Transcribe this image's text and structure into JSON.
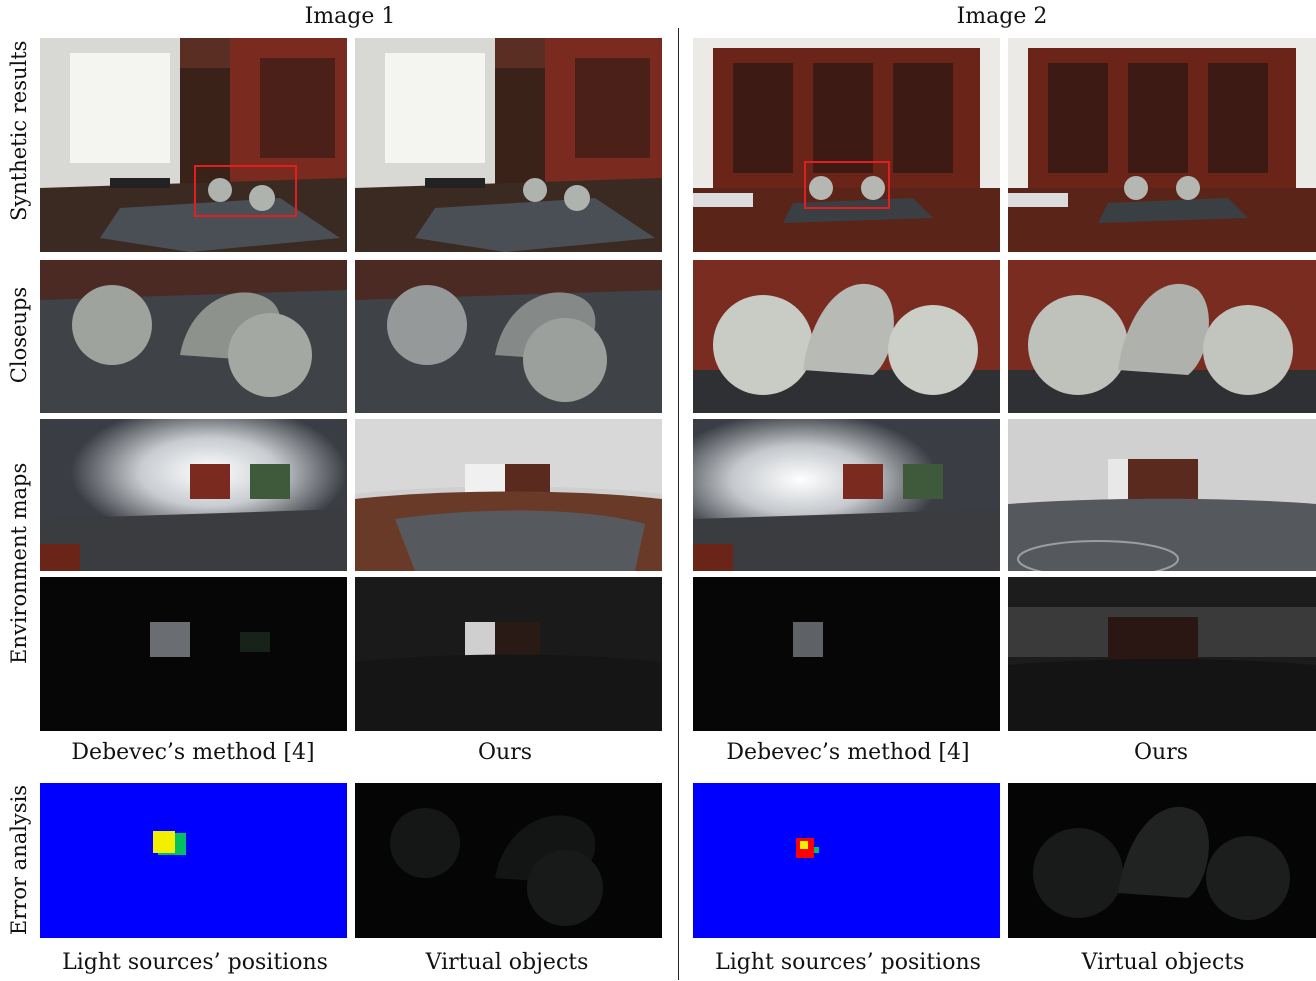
{
  "headers": {
    "left": "Image 1",
    "right": "Image 2"
  },
  "row_labels": {
    "synthetic": "Synthetic results",
    "closeups": "Closeups",
    "environment": "Environment maps",
    "error": "Error analysis"
  },
  "captions": {
    "debevec_left": "Debevec’s method [4]",
    "ours_left": "Ours",
    "debevec_right": "Debevec’s method [4]",
    "ours_right": "Ours",
    "light_left": "Light sources’ positions",
    "virtual_left": "Virtual objects",
    "light_right": "Light sources’ positions",
    "virtual_right": "Virtual objects"
  },
  "colors": {
    "error_background": "#0000ff",
    "highlight_box": "#e02020",
    "error_yellow": "#f2f000",
    "error_red": "#ff0000"
  }
}
